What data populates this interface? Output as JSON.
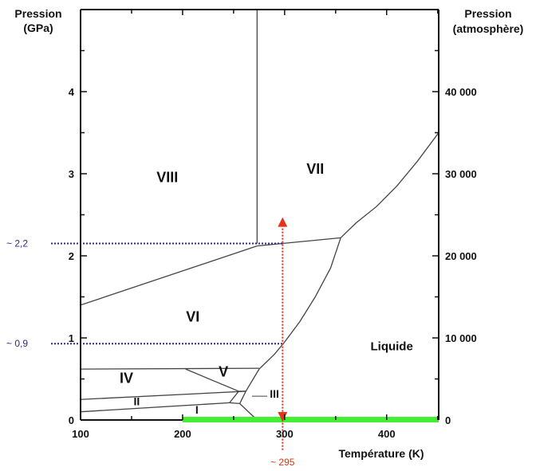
{
  "chart_data": {
    "type": "line",
    "title": "",
    "xlabel": "Température (K)",
    "ylabel": "Pression (GPa)",
    "ylabel_right": "Pression (atmosphère)",
    "xlim": [
      100,
      451
    ],
    "ylim": [
      0,
      5
    ],
    "x_ticks": [
      100,
      200,
      300,
      400
    ],
    "x_tick_labels": [
      "100",
      "200",
      "300",
      "400"
    ],
    "y_ticks": [
      0,
      1,
      2,
      3,
      4
    ],
    "y_tick_labels": [
      "0",
      "1",
      "2",
      "3",
      "4"
    ],
    "y_right_ticks": [
      0,
      1,
      2,
      3,
      4
    ],
    "y_right_tick_labels": [
      "0",
      "10 000",
      "20 000",
      "30 000",
      "40 000"
    ],
    "grid": false,
    "phase_labels": [
      {
        "text": "VIII",
        "x": 185,
        "y": 2.9
      },
      {
        "text": "VII",
        "x": 330,
        "y": 3.0
      },
      {
        "text": "VI",
        "x": 210,
        "y": 1.2
      },
      {
        "text": "Liquide",
        "x": 405,
        "y": 0.85
      },
      {
        "text": "IV",
        "x": 145,
        "y": 0.45
      },
      {
        "text": "V",
        "x": 240,
        "y": 0.53
      },
      {
        "text": "III",
        "x": 290,
        "y": 0.27
      },
      {
        "text": "II",
        "x": 155,
        "y": 0.18
      },
      {
        "text": "I",
        "x": 214,
        "y": 0.08
      }
    ],
    "boundaries": [
      {
        "name": "VIII-VII",
        "x": [
          273,
          273
        ],
        "y": [
          2.15,
          5.0
        ]
      },
      {
        "name": "VIII-VI",
        "x": [
          100,
          273
        ],
        "y": [
          1.4,
          2.12
        ]
      },
      {
        "name": "VI-VII",
        "x": [
          273,
          355
        ],
        "y": [
          2.12,
          2.22
        ]
      },
      {
        "name": "VII-Liquide",
        "x": [
          355,
          370,
          390,
          410,
          430,
          451
        ],
        "y": [
          2.22,
          2.4,
          2.6,
          2.85,
          3.15,
          3.5
        ]
      },
      {
        "name": "VI-Liquide",
        "x": [
          275,
          290,
          300,
          315,
          330,
          345,
          355
        ],
        "y": [
          0.62,
          0.8,
          0.95,
          1.2,
          1.5,
          1.85,
          2.22
        ]
      },
      {
        "name": "IV-VI",
        "x": [
          100,
          275
        ],
        "y": [
          0.62,
          0.63
        ]
      },
      {
        "name": "IV-V",
        "x": [
          203,
          255
        ],
        "y": [
          0.62,
          0.35
        ]
      },
      {
        "name": "II-IV",
        "x": [
          100,
          262
        ],
        "y": [
          0.25,
          0.35
        ]
      },
      {
        "name": "V-Liquide",
        "x": [
          262,
          275
        ],
        "y": [
          0.35,
          0.62
        ]
      },
      {
        "name": "II-I",
        "x": [
          100,
          246
        ],
        "y": [
          0.1,
          0.21
        ]
      },
      {
        "name": "III-left",
        "x": [
          246,
          255
        ],
        "y": [
          0.21,
          0.35
        ]
      },
      {
        "name": "III-top",
        "x": [
          255,
          262
        ],
        "y": [
          0.35,
          0.35
        ]
      },
      {
        "name": "III-I",
        "x": [
          246,
          256
        ],
        "y": [
          0.21,
          0.2
        ]
      },
      {
        "name": "III-Liquide",
        "x": [
          262,
          256
        ],
        "y": [
          0.35,
          0.2
        ]
      },
      {
        "name": "I-Liquide",
        "x": [
          256,
          273
        ],
        "y": [
          0.2,
          0.0
        ]
      }
    ],
    "reference_lines": [
      {
        "label": "~ 2,2",
        "axis": "y",
        "value": 2.15,
        "color": "#2b2b8f"
      },
      {
        "label": "~ 0,9",
        "axis": "y",
        "value": 0.93,
        "color": "#2b2b8f"
      },
      {
        "label": "~ 295",
        "axis": "x",
        "value": 298,
        "color": "#d03a10"
      }
    ],
    "highlight": {
      "name": "atmospheric-pressure-band",
      "x": [
        200,
        451
      ],
      "y": 0,
      "color": "#44ee33"
    },
    "arrow": {
      "x": 298,
      "y_from": 0,
      "y_to": 2.45,
      "color": "#e8331a"
    }
  }
}
